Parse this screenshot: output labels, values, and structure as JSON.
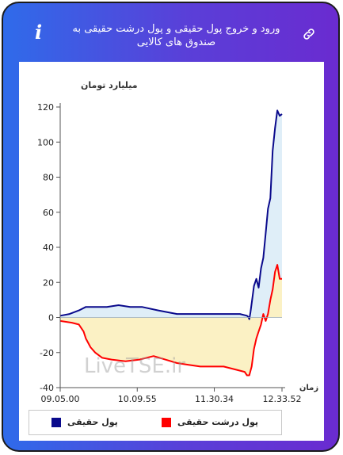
{
  "header": {
    "title": "ورود و خروج پول حقیقی و پول درشت حقیقی به صندوق های کالایی",
    "info_icon": "i"
  },
  "icons": {
    "info": "info-icon",
    "link": "link-icon"
  },
  "colors": {
    "real_money": "#0a0a8c",
    "large_real_money": "#ff0000",
    "positive_fill": "#dfeef8",
    "negative_fill": "#fbf1c4"
  },
  "chart_data": {
    "type": "line",
    "ylabel": "میلیارد تومان",
    "xlabel": "زمان",
    "ylim": [
      -40,
      120
    ],
    "yticks": [
      -40,
      -20,
      0,
      20,
      40,
      60,
      80,
      100,
      120
    ],
    "xticks": [
      "09.05.00",
      "10.09.55",
      "11.30.34",
      "12.33.52"
    ],
    "grid": false,
    "legend_placement": "bottom",
    "watermark": "LiveTSE.ir",
    "series": [
      {
        "name": "پول حقیقی",
        "color": "#0a0a8c",
        "points": [
          [
            0,
            1
          ],
          [
            4,
            2
          ],
          [
            8,
            4
          ],
          [
            11,
            6
          ],
          [
            15,
            6
          ],
          [
            20,
            6
          ],
          [
            25,
            7
          ],
          [
            30,
            6
          ],
          [
            35,
            6
          ],
          [
            42,
            4
          ],
          [
            50,
            2
          ],
          [
            60,
            2
          ],
          [
            70,
            2
          ],
          [
            77,
            2
          ],
          [
            80,
            1
          ],
          [
            80.7,
            0
          ],
          [
            81,
            -1
          ],
          [
            81.5,
            3
          ],
          [
            82,
            8
          ],
          [
            83,
            18
          ],
          [
            84,
            22
          ],
          [
            85,
            17
          ],
          [
            86,
            28
          ],
          [
            87,
            34
          ],
          [
            88,
            48
          ],
          [
            89,
            62
          ],
          [
            90,
            68
          ],
          [
            91,
            95
          ],
          [
            92,
            108
          ],
          [
            93,
            118
          ],
          [
            94,
            115
          ],
          [
            95,
            116
          ]
        ]
      },
      {
        "name": "پول درشت حقیقی",
        "color": "#ff0000",
        "points": [
          [
            0,
            -2
          ],
          [
            5,
            -3
          ],
          [
            8,
            -4
          ],
          [
            10,
            -8
          ],
          [
            11,
            -12
          ],
          [
            13,
            -17
          ],
          [
            15,
            -20
          ],
          [
            18,
            -23
          ],
          [
            22,
            -24
          ],
          [
            28,
            -25
          ],
          [
            34,
            -24
          ],
          [
            40,
            -22
          ],
          [
            45,
            -24
          ],
          [
            50,
            -26
          ],
          [
            55,
            -27
          ],
          [
            60,
            -28
          ],
          [
            65,
            -28
          ],
          [
            70,
            -28
          ],
          [
            76,
            -30
          ],
          [
            79,
            -31
          ],
          [
            80,
            -33
          ],
          [
            81,
            -33
          ],
          [
            82,
            -28
          ],
          [
            83,
            -18
          ],
          [
            84,
            -12
          ],
          [
            85,
            -8
          ],
          [
            86,
            -4
          ],
          [
            87,
            2
          ],
          [
            88,
            -2
          ],
          [
            89,
            2
          ],
          [
            90,
            10
          ],
          [
            91,
            16
          ],
          [
            92,
            26
          ],
          [
            93,
            30
          ],
          [
            94,
            22
          ],
          [
            95,
            22
          ]
        ]
      }
    ]
  },
  "legend": {
    "items": [
      {
        "label": "پول حقیقی",
        "color": "#0a0a8c"
      },
      {
        "label": "پول درشت حقیقی",
        "color": "#ff0000"
      }
    ]
  }
}
